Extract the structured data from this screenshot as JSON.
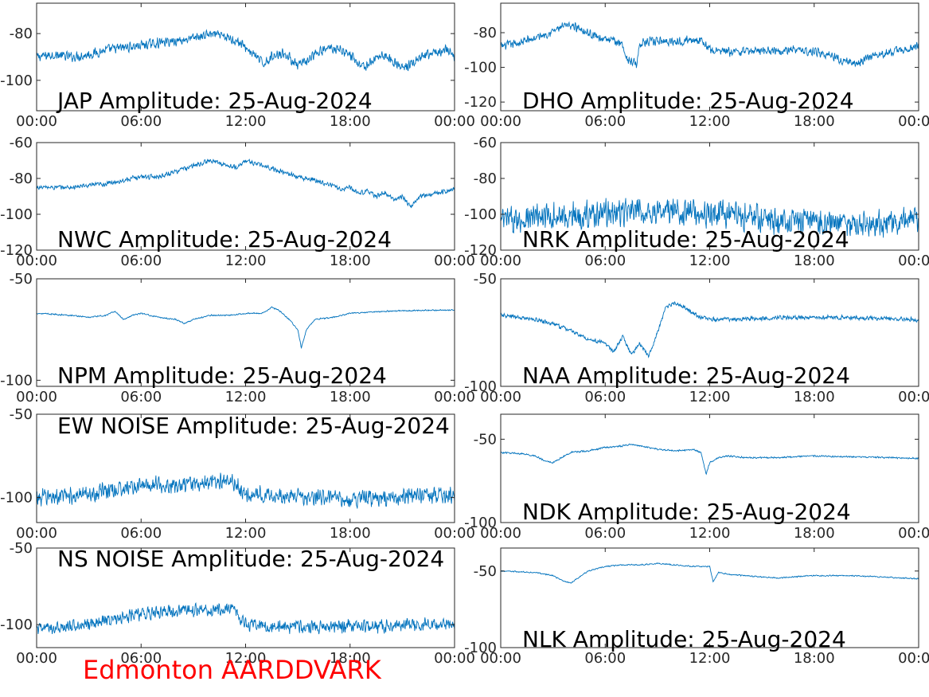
{
  "figure": {
    "site_label": "Edmonton AARDDVARK",
    "line_color": "#0072bd",
    "site_label_color": "#ff0000"
  },
  "chart_data": [
    {
      "type": "line",
      "title": "JAP Amplitude: 25-Aug-2024",
      "xlim": [
        0,
        24
      ],
      "xticks": [
        0,
        6,
        12,
        18,
        24
      ],
      "xtick_labels": [
        "00:00",
        "06:00",
        "12:00",
        "18:00",
        "00:00"
      ],
      "ylim": [
        -113,
        -67
      ],
      "yticks": [
        -80,
        -100
      ],
      "ytick_labels": [
        "-80",
        "-100"
      ],
      "noise": 2.5,
      "series": [
        {
          "x": [
            0,
            1,
            2,
            3,
            4,
            5,
            6,
            7,
            8,
            9,
            9.5,
            10,
            10.5,
            11,
            11.5,
            12,
            12.5,
            13,
            13.5,
            14,
            14.5,
            15,
            15.5,
            16,
            16.5,
            17,
            17.5,
            18,
            18.5,
            19,
            19.5,
            20,
            20.5,
            21,
            21.5,
            22,
            22.5,
            23,
            23.5,
            24
          ],
          "y": [
            -90,
            -89,
            -90,
            -89,
            -87,
            -86,
            -85,
            -84,
            -83,
            -82,
            -81,
            -80,
            -81,
            -82,
            -83,
            -86,
            -89,
            -93,
            -90,
            -88,
            -90,
            -94,
            -92,
            -89,
            -87,
            -86,
            -87,
            -89,
            -93,
            -94,
            -90,
            -89,
            -92,
            -95,
            -93,
            -91,
            -89,
            -88,
            -87,
            -90
          ]
        }
      ]
    },
    {
      "type": "line",
      "title": "DHO Amplitude: 25-Aug-2024",
      "xlim": [
        0,
        24
      ],
      "xticks": [
        0,
        6,
        12,
        18,
        24
      ],
      "xtick_labels": [
        "00:00",
        "06:00",
        "12:00",
        "18:00",
        "00:00"
      ],
      "ylim": [
        -125,
        -63
      ],
      "yticks": [
        -80,
        -100,
        -120
      ],
      "ytick_labels": [
        "-80",
        "-100",
        "-120"
      ],
      "noise": 3,
      "series": [
        {
          "x": [
            0,
            1,
            2,
            3,
            3.5,
            4,
            4.5,
            5,
            6,
            7,
            7.2,
            7.8,
            8,
            9,
            10,
            11,
            11.5,
            12,
            13,
            14,
            15,
            16,
            17,
            18,
            19,
            19.5,
            20,
            20.5,
            21,
            22,
            23,
            24
          ],
          "y": [
            -88,
            -86,
            -83,
            -79,
            -77,
            -76,
            -77,
            -80,
            -84,
            -86,
            -95,
            -98,
            -86,
            -85,
            -85,
            -84,
            -84,
            -90,
            -91,
            -91,
            -90,
            -90,
            -90,
            -91,
            -93,
            -96,
            -97,
            -98,
            -95,
            -92,
            -90,
            -88
          ]
        }
      ]
    },
    {
      "type": "line",
      "title": "NWC Amplitude: 25-Aug-2024",
      "xlim": [
        0,
        24
      ],
      "xticks": [
        0,
        6,
        12,
        18,
        24
      ],
      "xtick_labels": [
        "00:00",
        "06:00",
        "12:00",
        "18:00",
        "00:00"
      ],
      "ylim": [
        -120,
        -60
      ],
      "yticks": [
        -60,
        -80,
        -100,
        -120
      ],
      "ytick_labels": [
        "-60",
        "-80",
        "-100",
        "-120"
      ],
      "noise": 1.6,
      "series": [
        {
          "x": [
            0,
            1,
            2,
            3,
            4,
            5,
            6,
            7,
            8,
            9,
            10,
            11,
            11.5,
            12,
            13,
            14,
            15,
            16,
            17,
            17.5,
            18,
            18.5,
            19,
            19.5,
            20,
            20.5,
            21,
            21.5,
            22,
            23,
            24
          ],
          "y": [
            -85,
            -85,
            -85,
            -84,
            -83,
            -81,
            -79,
            -79,
            -76,
            -73,
            -70,
            -73,
            -74,
            -70,
            -73,
            -76,
            -79,
            -81,
            -84,
            -86,
            -85,
            -88,
            -87,
            -90,
            -88,
            -92,
            -90,
            -96,
            -90,
            -88,
            -86
          ]
        }
      ]
    },
    {
      "type": "line",
      "title": "NRK Amplitude: 25-Aug-2024",
      "xlim": [
        0,
        24
      ],
      "xticks": [
        0,
        6,
        12,
        18,
        24
      ],
      "xtick_labels": [
        "00:00",
        "06:00",
        "12:00",
        "18:00",
        "00:00"
      ],
      "ylim": [
        -120,
        -60
      ],
      "yticks": [
        -60,
        -80,
        -100,
        -120
      ],
      "ytick_labels": [
        "-60",
        "-80",
        "-100",
        "-120"
      ],
      "noise": 9,
      "series": [
        {
          "x": [
            0,
            2,
            4,
            6,
            8,
            10,
            12,
            14,
            16,
            18,
            20,
            22,
            24
          ],
          "y": [
            -104,
            -102,
            -101,
            -99,
            -99,
            -98,
            -100,
            -101,
            -104,
            -104,
            -106,
            -105,
            -104
          ]
        }
      ]
    },
    {
      "type": "line",
      "title": "NPM Amplitude: 25-Aug-2024",
      "xlim": [
        0,
        24
      ],
      "xticks": [
        0,
        6,
        12,
        18,
        24
      ],
      "xtick_labels": [
        "00:00",
        "06:00",
        "12:00",
        "18:00",
        "00:00"
      ],
      "ylim": [
        -103,
        -50
      ],
      "yticks": [
        -50,
        -100
      ],
      "ytick_labels": [
        "-50",
        "-100"
      ],
      "noise": 0.4,
      "series": [
        {
          "x": [
            0,
            1,
            2,
            3,
            4,
            4.5,
            5,
            5.5,
            6,
            7,
            8,
            8.5,
            9,
            10,
            11,
            12,
            13,
            13.5,
            14,
            14.5,
            15,
            15.2,
            15.5,
            16,
            17,
            18,
            20,
            22,
            24
          ],
          "y": [
            -67,
            -67.5,
            -68,
            -69,
            -68,
            -66,
            -70,
            -68,
            -67,
            -69,
            -70,
            -72,
            -70,
            -68,
            -68,
            -67,
            -67,
            -64,
            -66,
            -70,
            -75,
            -84,
            -75,
            -70,
            -69,
            -67,
            -66,
            -65.5,
            -65.5
          ]
        }
      ]
    },
    {
      "type": "line",
      "title": "NAA Amplitude: 25-Aug-2024",
      "xlim": [
        0,
        24
      ],
      "xticks": [
        0,
        6,
        12,
        18,
        24
      ],
      "xtick_labels": [
        "00:00",
        "06:00",
        "12:00",
        "18:00",
        "00:00"
      ],
      "ylim": [
        -100,
        -50
      ],
      "yticks": [
        -50,
        -100
      ],
      "ytick_labels": [
        "-50",
        "-100"
      ],
      "noise": 1.2,
      "series": [
        {
          "x": [
            0,
            1,
            2,
            3,
            4,
            5,
            6,
            6.5,
            7,
            7.5,
            8,
            8.5,
            9,
            9.5,
            10,
            10.5,
            11,
            11.5,
            12,
            14,
            16,
            18,
            20,
            22,
            24
          ],
          "y": [
            -67,
            -68,
            -69,
            -71,
            -74,
            -78,
            -80,
            -84,
            -77,
            -85,
            -80,
            -86,
            -75,
            -63,
            -61,
            -63,
            -66,
            -68,
            -69,
            -68.5,
            -68,
            -68,
            -68,
            -68.5,
            -69
          ]
        }
      ]
    },
    {
      "type": "line",
      "title": "EW NOISE Amplitude: 25-Aug-2024",
      "xlim": [
        0,
        24
      ],
      "xticks": [
        0,
        6,
        12,
        18,
        24
      ],
      "xtick_labels": [
        "00:00",
        "06:00",
        "12:00",
        "18:00",
        "00:00"
      ],
      "ylim": [
        -115,
        -50
      ],
      "yticks": [
        -50,
        -100
      ],
      "ytick_labels": [
        "-50",
        "-100"
      ],
      "noise": 6,
      "series": [
        {
          "x": [
            0,
            2,
            4,
            6,
            8,
            10,
            11,
            11.5,
            12,
            14,
            16,
            18,
            20,
            22,
            24
          ],
          "y": [
            -100,
            -99,
            -96,
            -93,
            -92,
            -91,
            -90,
            -92,
            -98,
            -99,
            -100,
            -101,
            -100,
            -99,
            -99
          ]
        }
      ]
    },
    {
      "type": "line",
      "title": "NDK Amplitude: 25-Aug-2024",
      "xlim": [
        0,
        24
      ],
      "xticks": [
        0,
        6,
        12,
        18,
        24
      ],
      "xtick_labels": [
        "00:00",
        "06:00",
        "12:00",
        "18:00",
        "00:00"
      ],
      "ylim": [
        -100,
        -35
      ],
      "yticks": [
        -50,
        -100
      ],
      "ytick_labels": [
        "-50",
        "-100"
      ],
      "noise": 0.6,
      "series": [
        {
          "x": [
            0,
            1,
            2,
            2.5,
            3,
            3.5,
            4,
            5,
            6,
            7,
            7.5,
            8,
            9,
            10,
            11,
            11.5,
            11.8,
            12,
            12.5,
            13,
            14,
            16,
            18,
            20,
            22,
            24
          ],
          "y": [
            -58,
            -58.5,
            -60,
            -63,
            -64,
            -61,
            -58,
            -57,
            -55,
            -54,
            -53,
            -54,
            -56,
            -57,
            -56,
            -58,
            -71,
            -64,
            -61,
            -60,
            -61,
            -61,
            -60,
            -60.5,
            -61,
            -61.5
          ]
        }
      ]
    },
    {
      "type": "line",
      "title": "NS NOISE Amplitude: 25-Aug-2024",
      "xlim": [
        0,
        24
      ],
      "xticks": [
        0,
        6,
        12,
        18,
        24
      ],
      "xtick_labels": [
        "00:00",
        "06:00",
        "12:00",
        "18:00",
        "00:00"
      ],
      "ylim": [
        -115,
        -50
      ],
      "yticks": [
        -50,
        -100
      ],
      "ytick_labels": [
        "-50",
        "-100"
      ],
      "noise": 5,
      "series": [
        {
          "x": [
            0,
            2,
            4,
            6,
            8,
            10,
            11,
            11.5,
            12,
            14,
            16,
            18,
            20,
            22,
            24
          ],
          "y": [
            -103,
            -101,
            -97,
            -93,
            -91,
            -90,
            -89,
            -93,
            -100,
            -101,
            -102,
            -101,
            -101,
            -100,
            -100
          ]
        }
      ]
    },
    {
      "type": "line",
      "title": "NLK Amplitude: 25-Aug-2024",
      "xlim": [
        0,
        24
      ],
      "xticks": [
        0,
        6,
        12,
        18,
        24
      ],
      "xtick_labels": [
        "00:00",
        "06:00",
        "12:00",
        "18:00",
        "00:00"
      ],
      "ylim": [
        -100,
        -35
      ],
      "yticks": [
        -50,
        -100
      ],
      "ytick_labels": [
        "-50",
        "-100"
      ],
      "noise": 0.5,
      "series": [
        {
          "x": [
            0,
            1,
            2,
            3,
            3.5,
            4,
            4.5,
            5,
            6,
            7,
            8,
            9,
            10,
            11,
            12,
            12.2,
            12.5,
            13,
            14,
            15,
            16,
            18,
            20,
            22,
            24
          ],
          "y": [
            -50,
            -50.5,
            -51,
            -53,
            -56,
            -58,
            -54,
            -50,
            -47,
            -46,
            -46,
            -45,
            -46,
            -47,
            -47,
            -57,
            -51,
            -52,
            -53,
            -54,
            -54.5,
            -53,
            -53,
            -54,
            -55
          ]
        }
      ]
    }
  ]
}
